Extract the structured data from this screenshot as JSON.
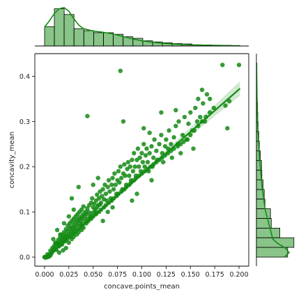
{
  "chart_data": {
    "type": "scatter",
    "xlabel": "concave.points_mean",
    "ylabel": "concavity_mean",
    "xlim": [
      -0.01,
      0.21
    ],
    "ylim": [
      -0.02,
      0.45
    ],
    "x_ticks": [
      "0.000",
      "0.025",
      "0.050",
      "0.075",
      "0.100",
      "0.125",
      "0.150",
      "0.175",
      "0.200"
    ],
    "y_ticks": [
      "0.0",
      "0.1",
      "0.2",
      "0.3",
      "0.4"
    ],
    "x_tick_values": [
      0,
      0.025,
      0.05,
      0.075,
      0.1,
      0.125,
      0.15,
      0.175,
      0.2
    ],
    "y_tick_values": [
      0,
      0.1,
      0.2,
      0.3,
      0.4
    ],
    "grid": false,
    "color": "#138a13",
    "regression": {
      "slope": 1.88,
      "intercept": -0.005,
      "x_range": [
        0,
        0.201
      ]
    },
    "points": [
      [
        0.0,
        0.0
      ],
      [
        0.0,
        0.0
      ],
      [
        0.001,
        0.0
      ],
      [
        0.002,
        0.0
      ],
      [
        0.003,
        0.0
      ],
      [
        0.004,
        0.001
      ],
      [
        0.005,
        0.002
      ],
      [
        0.004,
        0.003
      ],
      [
        0.006,
        0.004
      ],
      [
        0.003,
        0.006
      ],
      [
        0.005,
        0.006
      ],
      [
        0.007,
        0.008
      ],
      [
        0.008,
        0.012
      ],
      [
        0.006,
        0.014
      ],
      [
        0.009,
        0.015
      ],
      [
        0.01,
        0.018
      ],
      [
        0.008,
        0.02
      ],
      [
        0.011,
        0.022
      ],
      [
        0.012,
        0.016
      ],
      [
        0.01,
        0.025
      ],
      [
        0.013,
        0.028
      ],
      [
        0.012,
        0.031
      ],
      [
        0.014,
        0.03
      ],
      [
        0.015,
        0.024
      ],
      [
        0.016,
        0.035
      ],
      [
        0.014,
        0.038
      ],
      [
        0.017,
        0.03
      ],
      [
        0.018,
        0.04
      ],
      [
        0.016,
        0.044
      ],
      [
        0.019,
        0.036
      ],
      [
        0.02,
        0.045
      ],
      [
        0.018,
        0.05
      ],
      [
        0.021,
        0.042
      ],
      [
        0.022,
        0.05
      ],
      [
        0.02,
        0.055
      ],
      [
        0.023,
        0.046
      ],
      [
        0.024,
        0.058
      ],
      [
        0.022,
        0.062
      ],
      [
        0.025,
        0.05
      ],
      [
        0.026,
        0.064
      ],
      [
        0.024,
        0.07
      ],
      [
        0.027,
        0.055
      ],
      [
        0.028,
        0.066
      ],
      [
        0.026,
        0.075
      ],
      [
        0.029,
        0.06
      ],
      [
        0.03,
        0.072
      ],
      [
        0.028,
        0.08
      ],
      [
        0.031,
        0.065
      ],
      [
        0.032,
        0.078
      ],
      [
        0.03,
        0.085
      ],
      [
        0.033,
        0.07
      ],
      [
        0.034,
        0.082
      ],
      [
        0.032,
        0.09
      ],
      [
        0.035,
        0.075
      ],
      [
        0.036,
        0.086
      ],
      [
        0.034,
        0.095
      ],
      [
        0.037,
        0.08
      ],
      [
        0.038,
        0.09
      ],
      [
        0.036,
        0.1
      ],
      [
        0.039,
        0.085
      ],
      [
        0.04,
        0.095
      ],
      [
        0.038,
        0.105
      ],
      [
        0.041,
        0.09
      ],
      [
        0.042,
        0.1
      ],
      [
        0.04,
        0.112
      ],
      [
        0.043,
        0.095
      ],
      [
        0.044,
        0.108
      ],
      [
        0.046,
        0.115
      ],
      [
        0.045,
        0.1
      ],
      [
        0.047,
        0.088
      ],
      [
        0.048,
        0.12
      ],
      [
        0.05,
        0.11
      ],
      [
        0.049,
        0.13
      ],
      [
        0.051,
        0.118
      ],
      [
        0.052,
        0.1
      ],
      [
        0.053,
        0.125
      ],
      [
        0.054,
        0.138
      ],
      [
        0.055,
        0.115
      ],
      [
        0.056,
        0.13
      ],
      [
        0.057,
        0.145
      ],
      [
        0.058,
        0.12
      ],
      [
        0.059,
        0.135
      ],
      [
        0.06,
        0.15
      ],
      [
        0.061,
        0.128
      ],
      [
        0.062,
        0.16
      ],
      [
        0.063,
        0.14
      ],
      [
        0.064,
        0.125
      ],
      [
        0.065,
        0.155
      ],
      [
        0.066,
        0.17
      ],
      [
        0.067,
        0.145
      ],
      [
        0.068,
        0.13
      ],
      [
        0.069,
        0.16
      ],
      [
        0.07,
        0.175
      ],
      [
        0.071,
        0.15
      ],
      [
        0.072,
        0.185
      ],
      [
        0.073,
        0.16
      ],
      [
        0.074,
        0.14
      ],
      [
        0.075,
        0.17
      ],
      [
        0.076,
        0.19
      ],
      [
        0.077,
        0.165
      ],
      [
        0.078,
        0.2
      ],
      [
        0.079,
        0.175
      ],
      [
        0.08,
        0.15
      ],
      [
        0.081,
        0.185
      ],
      [
        0.082,
        0.205
      ],
      [
        0.083,
        0.18
      ],
      [
        0.084,
        0.16
      ],
      [
        0.085,
        0.195
      ],
      [
        0.086,
        0.21
      ],
      [
        0.087,
        0.18
      ],
      [
        0.088,
        0.2
      ],
      [
        0.089,
        0.17
      ],
      [
        0.09,
        0.215
      ],
      [
        0.091,
        0.19
      ],
      [
        0.092,
        0.23
      ],
      [
        0.093,
        0.2
      ],
      [
        0.094,
        0.18
      ],
      [
        0.095,
        0.215
      ],
      [
        0.096,
        0.24
      ],
      [
        0.097,
        0.2
      ],
      [
        0.098,
        0.22
      ],
      [
        0.099,
        0.19
      ],
      [
        0.1,
        0.23
      ],
      [
        0.101,
        0.21
      ],
      [
        0.102,
        0.25
      ],
      [
        0.103,
        0.2
      ],
      [
        0.104,
        0.225
      ],
      [
        0.105,
        0.24
      ],
      [
        0.106,
        0.21
      ],
      [
        0.107,
        0.19
      ],
      [
        0.108,
        0.23
      ],
      [
        0.11,
        0.245
      ],
      [
        0.111,
        0.2
      ],
      [
        0.112,
        0.22
      ],
      [
        0.113,
        0.26
      ],
      [
        0.115,
        0.235
      ],
      [
        0.116,
        0.215
      ],
      [
        0.118,
        0.25
      ],
      [
        0.12,
        0.27
      ],
      [
        0.121,
        0.23
      ],
      [
        0.122,
        0.21
      ],
      [
        0.124,
        0.245
      ],
      [
        0.125,
        0.26
      ],
      [
        0.127,
        0.24
      ],
      [
        0.128,
        0.28
      ],
      [
        0.13,
        0.25
      ],
      [
        0.131,
        0.22
      ],
      [
        0.133,
        0.265
      ],
      [
        0.135,
        0.29
      ],
      [
        0.137,
        0.25
      ],
      [
        0.138,
        0.3
      ],
      [
        0.14,
        0.23
      ],
      [
        0.142,
        0.27
      ],
      [
        0.144,
        0.31
      ],
      [
        0.146,
        0.26
      ],
      [
        0.148,
        0.295
      ],
      [
        0.15,
        0.32
      ],
      [
        0.152,
        0.28
      ],
      [
        0.153,
        0.24
      ],
      [
        0.155,
        0.33
      ],
      [
        0.157,
        0.3
      ],
      [
        0.158,
        0.35
      ],
      [
        0.16,
        0.31
      ],
      [
        0.162,
        0.37
      ],
      [
        0.163,
        0.34
      ],
      [
        0.165,
        0.3
      ],
      [
        0.167,
        0.36
      ],
      [
        0.17,
        0.35
      ],
      [
        0.183,
        0.425
      ],
      [
        0.186,
        0.335
      ],
      [
        0.188,
        0.285
      ],
      [
        0.19,
        0.345
      ],
      [
        0.2,
        0.425
      ],
      [
        0.078,
        0.412
      ],
      [
        0.044,
        0.312
      ],
      [
        0.081,
        0.3
      ],
      [
        0.038,
        0.07
      ],
      [
        0.05,
        0.16
      ],
      [
        0.055,
        0.175
      ],
      [
        0.06,
        0.08
      ],
      [
        0.065,
        0.1
      ],
      [
        0.07,
        0.11
      ],
      [
        0.03,
        0.105
      ],
      [
        0.028,
        0.13
      ],
      [
        0.035,
        0.155
      ],
      [
        0.12,
        0.32
      ],
      [
        0.135,
        0.325
      ],
      [
        0.102,
        0.285
      ],
      [
        0.108,
        0.275
      ],
      [
        0.09,
        0.125
      ],
      [
        0.095,
        0.14
      ],
      [
        0.11,
        0.17
      ],
      [
        0.013,
        0.06
      ],
      [
        0.009,
        0.04
      ],
      [
        0.02,
        0.075
      ],
      [
        0.025,
        0.09
      ],
      [
        0.015,
        0.01
      ],
      [
        0.019,
        0.015
      ],
      [
        0.022,
        0.02
      ],
      [
        0.025,
        0.032
      ],
      [
        0.028,
        0.04
      ],
      [
        0.03,
        0.045
      ],
      [
        0.033,
        0.05
      ],
      [
        0.035,
        0.055
      ],
      [
        0.038,
        0.06
      ],
      [
        0.04,
        0.065
      ],
      [
        0.043,
        0.075
      ],
      [
        0.045,
        0.08
      ],
      [
        0.048,
        0.085
      ],
      [
        0.05,
        0.09
      ],
      [
        0.053,
        0.095
      ],
      [
        0.056,
        0.1
      ],
      [
        0.058,
        0.105
      ],
      [
        0.061,
        0.11
      ],
      [
        0.063,
        0.115
      ],
      [
        0.066,
        0.12
      ],
      [
        0.069,
        0.125
      ],
      [
        0.071,
        0.13
      ],
      [
        0.074,
        0.135
      ],
      [
        0.076,
        0.14
      ],
      [
        0.079,
        0.145
      ],
      [
        0.082,
        0.15
      ],
      [
        0.084,
        0.155
      ],
      [
        0.087,
        0.16
      ],
      [
        0.089,
        0.165
      ],
      [
        0.092,
        0.17
      ],
      [
        0.094,
        0.175
      ],
      [
        0.097,
        0.18
      ],
      [
        0.1,
        0.185
      ],
      [
        0.103,
        0.19
      ],
      [
        0.106,
        0.195
      ],
      [
        0.109,
        0.2
      ],
      [
        0.112,
        0.205
      ],
      [
        0.115,
        0.21
      ],
      [
        0.118,
        0.215
      ],
      [
        0.121,
        0.22
      ],
      [
        0.124,
        0.225
      ],
      [
        0.127,
        0.23
      ],
      [
        0.13,
        0.235
      ],
      [
        0.133,
        0.24
      ],
      [
        0.137,
        0.245
      ],
      [
        0.14,
        0.25
      ],
      [
        0.143,
        0.255
      ],
      [
        0.147,
        0.26
      ],
      [
        0.15,
        0.27
      ],
      [
        0.154,
        0.28
      ],
      [
        0.158,
        0.29
      ],
      [
        0.162,
        0.3
      ],
      [
        0.166,
        0.31
      ],
      [
        0.17,
        0.32
      ],
      [
        0.174,
        0.33
      ],
      [
        0.011,
        0.032
      ],
      [
        0.016,
        0.05
      ],
      [
        0.018,
        0.028
      ],
      [
        0.021,
        0.035
      ],
      [
        0.023,
        0.04
      ],
      [
        0.026,
        0.045
      ],
      [
        0.029,
        0.052
      ],
      [
        0.031,
        0.058
      ],
      [
        0.034,
        0.062
      ],
      [
        0.037,
        0.068
      ],
      [
        0.039,
        0.074
      ],
      [
        0.042,
        0.08
      ],
      [
        0.044,
        0.085
      ],
      [
        0.047,
        0.092
      ],
      [
        0.049,
        0.098
      ],
      [
        0.052,
        0.105
      ],
      [
        0.054,
        0.11
      ],
      [
        0.057,
        0.116
      ]
    ],
    "hist_x": {
      "edges": [
        0,
        0.0101,
        0.0202,
        0.0303,
        0.0404,
        0.0505,
        0.0606,
        0.0707,
        0.0808,
        0.0909,
        0.101,
        0.1111,
        0.1212,
        0.1313,
        0.1414,
        0.1515,
        0.1616,
        0.1717,
        0.1818,
        0.1919,
        0.201
      ],
      "counts": [
        0.48,
        0.92,
        0.78,
        0.43,
        0.38,
        0.33,
        0.33,
        0.29,
        0.23,
        0.19,
        0.13,
        0.1,
        0.08,
        0.06,
        0.05,
        0.03,
        0.025,
        0.02,
        0.015,
        0.01
      ],
      "kde": [
        [
          0,
          0.47
        ],
        [
          0.005,
          0.62
        ],
        [
          0.01,
          0.8
        ],
        [
          0.015,
          0.92
        ],
        [
          0.02,
          0.95
        ],
        [
          0.025,
          0.86
        ],
        [
          0.03,
          0.68
        ],
        [
          0.035,
          0.52
        ],
        [
          0.04,
          0.43
        ],
        [
          0.05,
          0.37
        ],
        [
          0.06,
          0.34
        ],
        [
          0.07,
          0.3
        ],
        [
          0.08,
          0.24
        ],
        [
          0.09,
          0.18
        ],
        [
          0.1,
          0.13
        ],
        [
          0.11,
          0.095
        ],
        [
          0.12,
          0.07
        ],
        [
          0.13,
          0.055
        ],
        [
          0.14,
          0.04
        ],
        [
          0.15,
          0.03
        ],
        [
          0.16,
          0.022
        ],
        [
          0.17,
          0.015
        ],
        [
          0.18,
          0.012
        ],
        [
          0.19,
          0.008
        ],
        [
          0.2,
          0.005
        ]
      ]
    },
    "hist_y": {
      "edges": [
        0,
        0.0214,
        0.0428,
        0.0641,
        0.0855,
        0.1069,
        0.1283,
        0.1496,
        0.171,
        0.1924,
        0.2138,
        0.2352,
        0.2565,
        0.2779,
        0.2993,
        0.3207,
        0.3421,
        0.3634,
        0.3848,
        0.4062,
        0.4276
      ],
      "counts": [
        0.8,
        0.96,
        0.6,
        0.38,
        0.36,
        0.22,
        0.2,
        0.17,
        0.14,
        0.13,
        0.1,
        0.075,
        0.06,
        0.045,
        0.035,
        0.03,
        0.02,
        0.015,
        0.012,
        0.01
      ],
      "kde": [
        [
          0,
          0.72
        ],
        [
          0.01,
          0.84
        ],
        [
          0.02,
          0.74
        ],
        [
          0.03,
          0.55
        ],
        [
          0.04,
          0.42
        ],
        [
          0.06,
          0.36
        ],
        [
          0.08,
          0.3
        ],
        [
          0.1,
          0.24
        ],
        [
          0.12,
          0.2
        ],
        [
          0.14,
          0.17
        ],
        [
          0.16,
          0.14
        ],
        [
          0.18,
          0.12
        ],
        [
          0.2,
          0.1
        ],
        [
          0.22,
          0.08
        ],
        [
          0.24,
          0.065
        ],
        [
          0.26,
          0.05
        ],
        [
          0.28,
          0.04
        ],
        [
          0.3,
          0.03
        ],
        [
          0.33,
          0.02
        ],
        [
          0.36,
          0.014
        ],
        [
          0.4,
          0.008
        ],
        [
          0.43,
          0.005
        ]
      ]
    }
  }
}
